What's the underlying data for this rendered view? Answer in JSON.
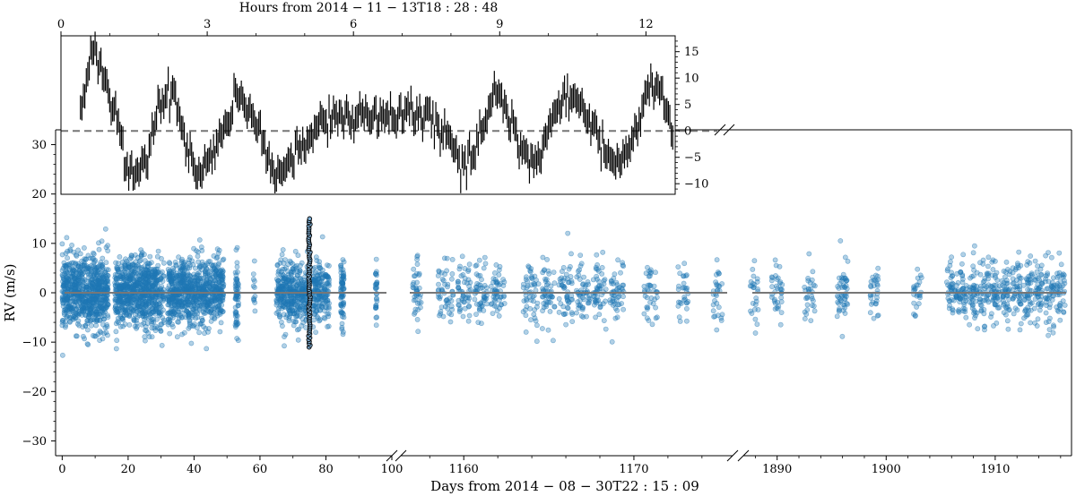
{
  "chart_data": [
    {
      "type": "scatter",
      "panel": "main",
      "ylabel": "RV (m/s)",
      "xlabel": "Days from 2014 − 08 − 30T22 : 15 : 09",
      "ylim": [
        -33,
        33
      ],
      "yticks": [
        "−30",
        "−20",
        "−10",
        "0",
        "10",
        "20",
        "30"
      ],
      "reference_line_y": 0,
      "marker_color": "#1f77b4",
      "segments": [
        {
          "xlim": [
            -2,
            100
          ],
          "xticks": [
            "0",
            "20",
            "40",
            "60",
            "80",
            "100"
          ],
          "observation_blocks": [
            {
              "start": 0,
              "end": 13,
              "spread": 8,
              "count": 700
            },
            {
              "start": 13,
              "end": 14,
              "spread": 9,
              "count": 60
            },
            {
              "start": 16,
              "end": 29,
              "spread": 7.5,
              "count": 700
            },
            {
              "start": 29,
              "end": 31,
              "spread": 8,
              "count": 60
            },
            {
              "start": 32,
              "end": 49,
              "spread": 7.5,
              "count": 800
            },
            {
              "start": 52.5,
              "end": 53.5,
              "spread": 8,
              "count": 60
            },
            {
              "start": 58,
              "end": 58.5,
              "spread": 5,
              "count": 12
            },
            {
              "start": 65,
              "end": 75,
              "spread": 7,
              "count": 400
            },
            {
              "start": 76,
              "end": 81,
              "spread": 7,
              "count": 180
            },
            {
              "start": 84.5,
              "end": 85.5,
              "spread": 8,
              "count": 70
            },
            {
              "start": 95,
              "end": 95.5,
              "spread": 6,
              "count": 30
            }
          ],
          "highlight_block": {
            "x": 75,
            "ymin": -11,
            "ymax": 15
          }
        },
        {
          "xlim": [
            1156.3,
            1175.8
          ],
          "xticks": [
            "1160",
            "1170"
          ],
          "observation_blocks": [
            {
              "start": 1157,
              "end": 1157.5,
              "count": 40
            },
            {
              "start": 1158.5,
              "end": 1159.4,
              "count": 50
            },
            {
              "start": 1159.6,
              "end": 1160.4,
              "count": 50
            },
            {
              "start": 1160.6,
              "end": 1161.4,
              "count": 50
            },
            {
              "start": 1161.6,
              "end": 1162.4,
              "count": 50
            },
            {
              "start": 1163.5,
              "end": 1164.4,
              "count": 50
            },
            {
              "start": 1164.6,
              "end": 1165.4,
              "count": 50
            },
            {
              "start": 1165.6,
              "end": 1166.4,
              "count": 50
            },
            {
              "start": 1166.6,
              "end": 1167.4,
              "count": 50
            },
            {
              "start": 1167.6,
              "end": 1168.4,
              "count": 50
            },
            {
              "start": 1168.6,
              "end": 1169.4,
              "count": 50
            },
            {
              "start": 1170.6,
              "end": 1171.4,
              "count": 40
            },
            {
              "start": 1172.6,
              "end": 1173.2,
              "count": 30
            },
            {
              "start": 1174.6,
              "end": 1175.2,
              "count": 30
            }
          ]
        },
        {
          "xlim": [
            1886.9,
            1917
          ],
          "xticks": [
            "1890",
            "1900",
            "1910"
          ],
          "observation_blocks": [
            {
              "start": 1887.5,
              "end": 1888.3,
              "count": 25
            },
            {
              "start": 1889.5,
              "end": 1890.5,
              "count": 35
            },
            {
              "start": 1892.5,
              "end": 1893.5,
              "count": 30
            },
            {
              "start": 1895.5,
              "end": 1896.5,
              "count": 50
            },
            {
              "start": 1898.5,
              "end": 1899.3,
              "count": 30
            },
            {
              "start": 1902.5,
              "end": 1903.3,
              "count": 25
            },
            {
              "start": 1905.5,
              "end": 1906.5,
              "count": 45
            },
            {
              "start": 1906.6,
              "end": 1907.4,
              "count": 45
            },
            {
              "start": 1907.6,
              "end": 1908.4,
              "count": 45
            },
            {
              "start": 1908.6,
              "end": 1909.4,
              "count": 45
            },
            {
              "start": 1909.6,
              "end": 1910.4,
              "count": 45
            },
            {
              "start": 1910.6,
              "end": 1911.4,
              "count": 45
            },
            {
              "start": 1911.6,
              "end": 1912.4,
              "count": 45
            },
            {
              "start": 1912.6,
              "end": 1913.4,
              "count": 45
            },
            {
              "start": 1913.6,
              "end": 1914.4,
              "count": 45
            },
            {
              "start": 1914.6,
              "end": 1915.4,
              "count": 45
            },
            {
              "start": 1915.6,
              "end": 1916.4,
              "count": 40
            }
          ]
        }
      ]
    },
    {
      "type": "line",
      "panel": "inset",
      "title": "Hours from 2014 − 11 − 13T18 : 28 : 48",
      "xlim": [
        0,
        12.6
      ],
      "xticks": [
        "0",
        "3",
        "6",
        "9",
        "12"
      ],
      "ylim": [
        -12,
        18
      ],
      "yticks": [
        "−10",
        "−5",
        "0",
        "5",
        "10",
        "15"
      ],
      "reference_line_y": 0,
      "error_bar_half_height": 2.3,
      "x": [
        0.4,
        0.6,
        0.7,
        0.9,
        1.2,
        1.3,
        1.5,
        1.7,
        2.0,
        2.3,
        2.5,
        2.8,
        3.0,
        3.3,
        3.6,
        3.9,
        4.2,
        4.5,
        4.8,
        5.2,
        5.6,
        6.0,
        6.5,
        7.0,
        7.5,
        8.0,
        8.3,
        8.6,
        8.9,
        9.1,
        9.4,
        9.7,
        10.0,
        10.3,
        10.6,
        10.9,
        11.2,
        11.5,
        11.8,
        12.1,
        12.35,
        12.55
      ],
      "y": [
        4,
        14,
        15,
        10,
        0,
        -7,
        -8,
        -6,
        4,
        7,
        0,
        -8,
        -7,
        0,
        6,
        4,
        -4,
        -8,
        -5,
        0,
        3,
        2.5,
        2.5,
        2.5,
        4,
        -3,
        -8,
        0,
        8,
        5,
        -2,
        -7,
        0,
        7,
        5,
        2,
        -5,
        -7,
        0,
        10,
        7,
        -3
      ]
    }
  ]
}
